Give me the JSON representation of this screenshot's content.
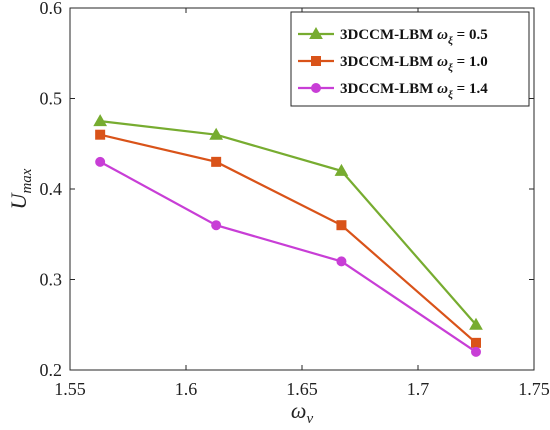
{
  "chart_data": {
    "type": "line",
    "title": "",
    "xlabel": {
      "base": "ω",
      "sub": "ν"
    },
    "ylabel": {
      "base": "U",
      "sub": "max"
    },
    "xlim": [
      1.55,
      1.75
    ],
    "ylim": [
      0.2,
      0.6
    ],
    "xticks": [
      "1.55",
      "1.6",
      "1.65",
      "1.7",
      "1.75"
    ],
    "yticks": [
      "0.2",
      "0.3",
      "0.4",
      "0.5",
      "0.6"
    ],
    "grid": false,
    "legend_position": "top-right",
    "x": [
      1.563,
      1.613,
      1.667,
      1.725
    ],
    "series": [
      {
        "name": "3DCCM-LBM",
        "param": "ω",
        "param_sub": "ξ",
        "value_text": " = 0.5",
        "color": "#77AC30",
        "marker": "triangle",
        "values": [
          0.475,
          0.46,
          0.42,
          0.25
        ]
      },
      {
        "name": "3DCCM-LBM",
        "param": "ω",
        "param_sub": "ξ",
        "value_text": " = 1.0",
        "color": "#D95319",
        "marker": "square",
        "values": [
          0.46,
          0.43,
          0.36,
          0.23
        ]
      },
      {
        "name": "3DCCM-LBM",
        "param": "ω",
        "param_sub": "ξ",
        "value_text": " = 1.4",
        "color": "#C83ED6",
        "marker": "circle",
        "values": [
          0.43,
          0.36,
          0.32,
          0.22
        ]
      }
    ]
  }
}
